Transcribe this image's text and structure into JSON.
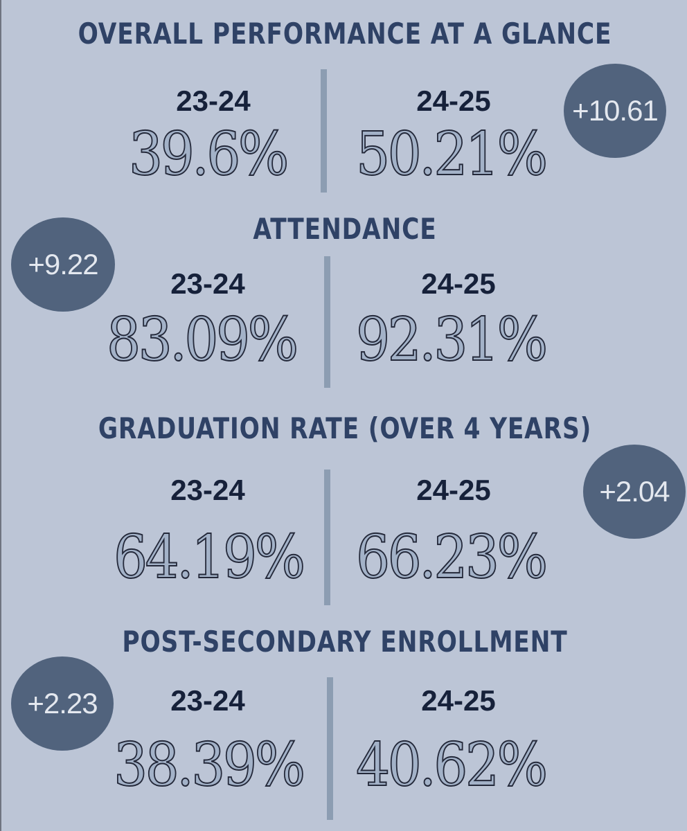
{
  "sections": [
    {
      "title": "OVERALL PERFORMANCE AT A GLANCE",
      "year_prev": "23-24",
      "year_curr": "24-25",
      "value_prev": "39.6%",
      "value_curr": "50.21%",
      "change": "+10.61"
    },
    {
      "title": "ATTENDANCE",
      "year_prev": "23-24",
      "year_curr": "24-25",
      "value_prev": "83.09%",
      "value_curr": "92.31%",
      "change": "+9.22"
    },
    {
      "title": "GRADUATION RATE (OVER 4 YEARS)",
      "year_prev": "23-24",
      "year_curr": "24-25",
      "value_prev": "64.19%",
      "value_curr": "66.23%",
      "change": "+2.04"
    },
    {
      "title": "POST-SECONDARY ENROLLMENT",
      "year_prev": "23-24",
      "year_curr": "24-25",
      "value_prev": "38.39%",
      "value_curr": "40.62%",
      "change": "+2.23"
    }
  ],
  "colors": {
    "background": "#bcc5d6",
    "title": "#2f4266",
    "year": "#16213a",
    "value_fill": "#a3b2c8",
    "divider": "#8c9db2",
    "badge": "#51637d"
  }
}
